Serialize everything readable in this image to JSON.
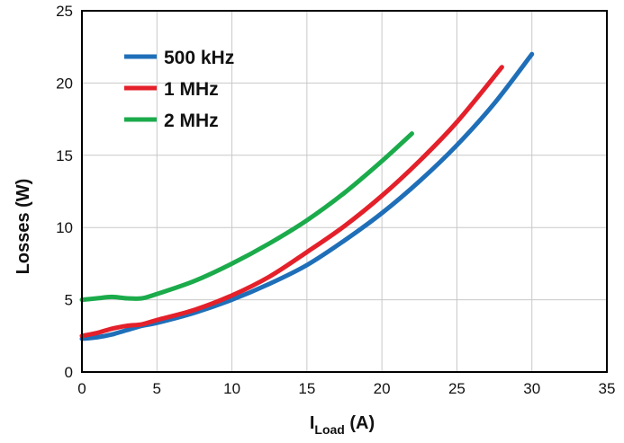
{
  "chart_data": {
    "type": "line",
    "title": "",
    "xlabel_main": "I",
    "xlabel_sub": "Load",
    "xlabel_unit": " (A)",
    "ylabel": "Losses (W)",
    "xlim": [
      0,
      35
    ],
    "ylim": [
      0,
      25
    ],
    "xticks": [
      0,
      5,
      10,
      15,
      20,
      25,
      30,
      35
    ],
    "yticks": [
      0,
      5,
      10,
      15,
      20,
      25
    ],
    "grid": true,
    "legend_position": "top-left",
    "series": [
      {
        "name": "500 kHz",
        "color": "#1f6fb8",
        "x": [
          0,
          1,
          2,
          3,
          4,
          5,
          7.5,
          10,
          12.5,
          15,
          17.5,
          20,
          22.5,
          25,
          27.5,
          30
        ],
        "y": [
          2.3,
          2.4,
          2.6,
          2.9,
          3.2,
          3.4,
          4.1,
          5.0,
          6.1,
          7.4,
          9.1,
          11.0,
          13.2,
          15.7,
          18.6,
          22.0
        ]
      },
      {
        "name": "1 MHz",
        "color": "#e4202a",
        "x": [
          0,
          1,
          2,
          3,
          4,
          5,
          7.5,
          10,
          12.5,
          15,
          17.5,
          20,
          22.5,
          25,
          28
        ],
        "y": [
          2.5,
          2.7,
          3.0,
          3.2,
          3.3,
          3.6,
          4.3,
          5.3,
          6.6,
          8.3,
          10.1,
          12.2,
          14.6,
          17.3,
          21.1
        ]
      },
      {
        "name": "2 MHz",
        "color": "#1bab4b",
        "x": [
          0,
          1,
          2,
          3,
          4,
          5,
          7.5,
          10,
          12.5,
          15,
          17.5,
          20,
          22
        ],
        "y": [
          5.0,
          5.1,
          5.2,
          5.1,
          5.1,
          5.4,
          6.3,
          7.5,
          8.9,
          10.5,
          12.4,
          14.6,
          16.5
        ]
      }
    ]
  }
}
